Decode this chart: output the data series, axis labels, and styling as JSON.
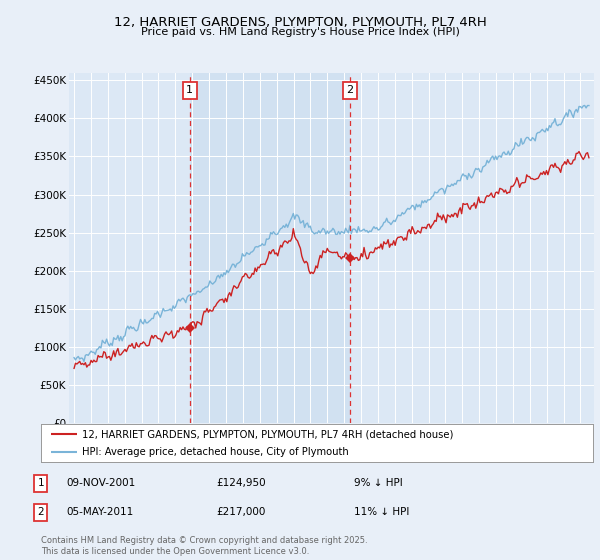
{
  "title_line1": "12, HARRIET GARDENS, PLYMPTON, PLYMOUTH, PL7 4RH",
  "title_line2": "Price paid vs. HM Land Registry's House Price Index (HPI)",
  "legend_line1": "12, HARRIET GARDENS, PLYMPTON, PLYMOUTH, PL7 4RH (detached house)",
  "legend_line2": "HPI: Average price, detached house, City of Plymouth",
  "annotation1_label": "1",
  "annotation1_date": "09-NOV-2001",
  "annotation1_price": "£124,950",
  "annotation1_hpi": "9% ↓ HPI",
  "annotation2_label": "2",
  "annotation2_date": "05-MAY-2011",
  "annotation2_price": "£217,000",
  "annotation2_hpi": "11% ↓ HPI",
  "vline1_x": 2001.85,
  "vline2_x": 2011.35,
  "sale1_x": 2001.85,
  "sale1_y": 124950,
  "sale2_x": 2011.35,
  "sale2_y": 217000,
  "hpi_color": "#7ab4d8",
  "price_color": "#cc2222",
  "vline_color": "#dd3333",
  "background_color": "#e8eff8",
  "plot_bg_color": "#dce8f5",
  "shade_color": "#cddff0",
  "ylim": [
    0,
    460000
  ],
  "xlim": [
    1994.7,
    2025.8
  ],
  "yticks": [
    0,
    50000,
    100000,
    150000,
    200000,
    250000,
    300000,
    350000,
    400000,
    450000
  ],
  "ylabels": [
    "£0",
    "£50K",
    "£100K",
    "£150K",
    "£200K",
    "£250K",
    "£300K",
    "£350K",
    "£400K",
    "£450K"
  ],
  "footer_text": "Contains HM Land Registry data © Crown copyright and database right 2025.\nThis data is licensed under the Open Government Licence v3.0."
}
